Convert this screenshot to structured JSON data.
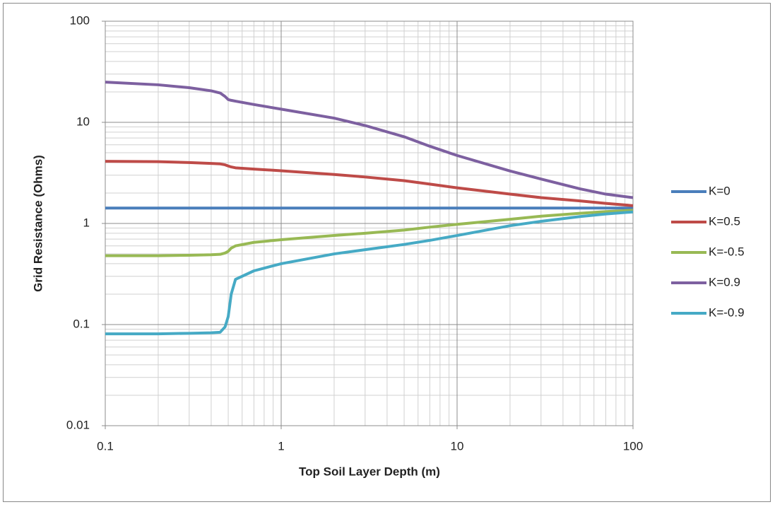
{
  "chart_data": {
    "type": "line",
    "x_label": "Top Soil Layer Depth (m)",
    "y_label": "Grid Resistance (Ohms)",
    "x_log": true,
    "y_log": true,
    "grid": true,
    "minor_grid": true,
    "legend": "right",
    "xlim": [
      0.1,
      100
    ],
    "xticks": [
      0.1,
      1,
      10,
      100
    ],
    "ylim": [
      0.01,
      100
    ],
    "yticks": [
      0.01,
      0.1,
      1,
      10,
      100
    ],
    "x": [
      0.1,
      0.2,
      0.3,
      0.4,
      0.45,
      0.48,
      0.5,
      0.52,
      0.55,
      0.7,
      1,
      2,
      3,
      5,
      7,
      10,
      20,
      30,
      50,
      70,
      100
    ],
    "series": [
      {
        "name": "K=0",
        "color": "#4a7ebb",
        "values": [
          1.42,
          1.42,
          1.42,
          1.42,
          1.42,
          1.42,
          1.42,
          1.42,
          1.42,
          1.42,
          1.42,
          1.42,
          1.42,
          1.42,
          1.42,
          1.42,
          1.42,
          1.42,
          1.42,
          1.42,
          1.42
        ]
      },
      {
        "name": "K=0.5",
        "color": "#be4b48",
        "values": [
          4.12,
          4.08,
          4.0,
          3.92,
          3.88,
          3.8,
          3.7,
          3.62,
          3.55,
          3.45,
          3.32,
          3.05,
          2.88,
          2.65,
          2.45,
          2.25,
          1.95,
          1.8,
          1.67,
          1.58,
          1.5
        ]
      },
      {
        "name": "K=-0.5",
        "color": "#98b954",
        "values": [
          0.48,
          0.48,
          0.485,
          0.49,
          0.495,
          0.51,
          0.53,
          0.57,
          0.6,
          0.65,
          0.69,
          0.76,
          0.8,
          0.86,
          0.92,
          0.98,
          1.1,
          1.18,
          1.26,
          1.31,
          1.35
        ]
      },
      {
        "name": "K=0.9",
        "color": "#7d60a0",
        "values": [
          25,
          23.5,
          22,
          20.5,
          19.5,
          18,
          16.8,
          16.5,
          16.2,
          15,
          13.5,
          11,
          9.3,
          7.2,
          5.8,
          4.7,
          3.3,
          2.75,
          2.2,
          1.95,
          1.8
        ]
      },
      {
        "name": "K=-0.9",
        "color": "#46aac5",
        "values": [
          0.081,
          0.081,
          0.082,
          0.083,
          0.084,
          0.095,
          0.12,
          0.2,
          0.28,
          0.34,
          0.4,
          0.5,
          0.55,
          0.62,
          0.68,
          0.76,
          0.95,
          1.05,
          1.17,
          1.24,
          1.3
        ]
      }
    ]
  }
}
